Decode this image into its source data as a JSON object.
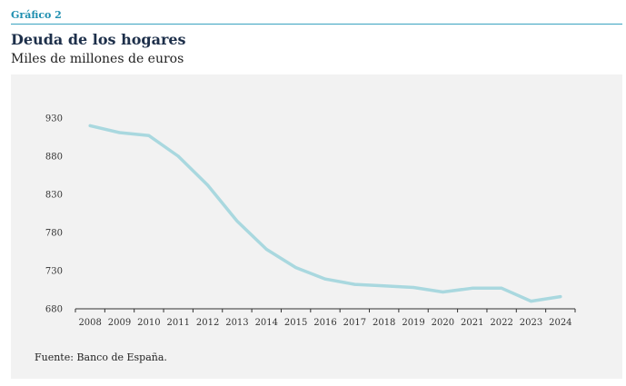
{
  "header": {
    "kicker": "Gráfico 2",
    "title": "Deuda de los hogares",
    "subtitle": "Miles de millones de euros"
  },
  "source": "Fuente: Banco de España.",
  "colors": {
    "line": "#a9d8df",
    "panel": "#f2f2f2",
    "kicker": "#1f8fb0",
    "title": "#1d2f4a"
  },
  "chart_data": {
    "type": "line",
    "title": "Deuda de los hogares",
    "subtitle": "Miles de millones de euros",
    "xlabel": "",
    "ylabel": "",
    "x": [
      "2008",
      "2009",
      "2010",
      "2011",
      "2012",
      "2013",
      "2014",
      "2015",
      "2016",
      "2017",
      "2018",
      "2019",
      "2020",
      "2021",
      "2022",
      "2023",
      "2024"
    ],
    "series": [
      {
        "values": [
          920,
          911,
          907,
          880,
          842,
          795,
          758,
          734,
          719,
          712,
          710,
          708,
          702,
          707,
          707,
          690,
          696
        ]
      }
    ],
    "ylim": [
      680,
      930
    ],
    "yticks": [
      680,
      730,
      780,
      830,
      880,
      930
    ],
    "grid": false,
    "legend": "none"
  }
}
